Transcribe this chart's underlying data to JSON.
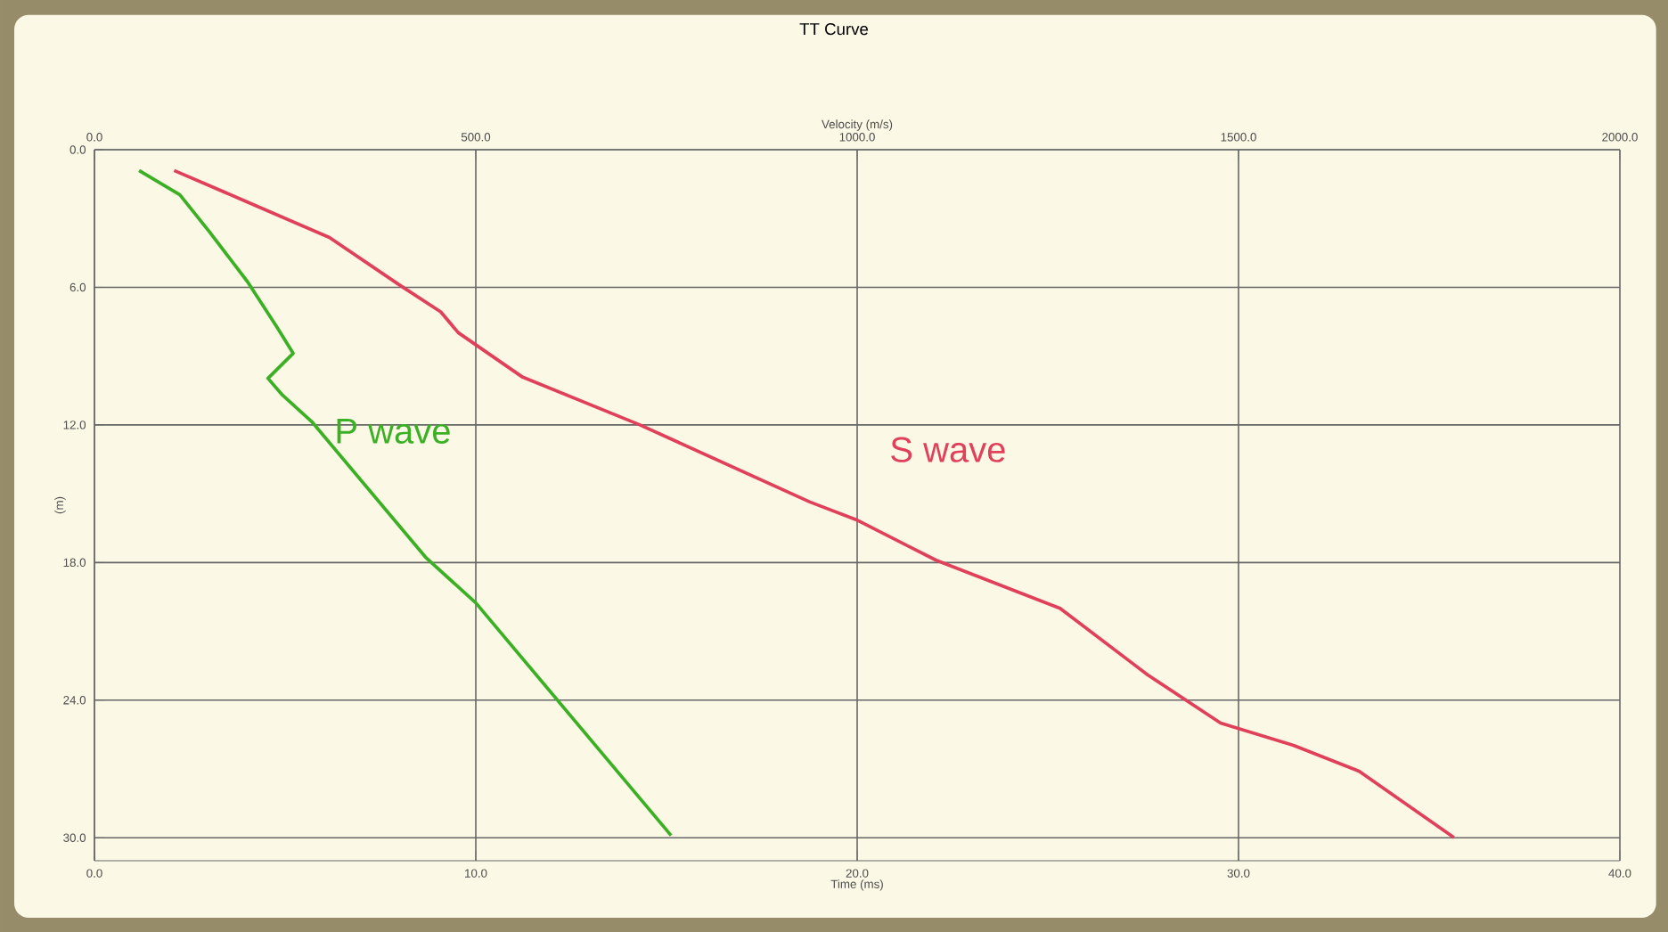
{
  "chart_data": {
    "type": "line",
    "title": "TT Curve",
    "xlabel": "Time (ms)",
    "x2label": "Velocity (m/s)",
    "ylabel": "(m)",
    "xlim": [
      0,
      40
    ],
    "xticks": [
      {
        "value": 0,
        "label": "0.0"
      },
      {
        "value": 10,
        "label": "10.0"
      },
      {
        "value": 20,
        "label": "20.0"
      },
      {
        "value": 30,
        "label": "30.0"
      },
      {
        "value": 40,
        "label": "40.0"
      }
    ],
    "x2lim": [
      0,
      2000
    ],
    "x2ticks": [
      {
        "value": 0,
        "label": "0.0"
      },
      {
        "value": 500,
        "label": "500.0"
      },
      {
        "value": 1000,
        "label": "1000.0"
      },
      {
        "value": 1500,
        "label": "1500.0"
      },
      {
        "value": 2000,
        "label": "2000.0"
      }
    ],
    "ylim": [
      31,
      0
    ],
    "yticks": [
      {
        "value": 0,
        "label": "0.0"
      },
      {
        "value": 6,
        "label": "6.0"
      },
      {
        "value": 12,
        "label": "12.0"
      },
      {
        "value": 18,
        "label": "18.0"
      },
      {
        "value": 24,
        "label": "24.0"
      },
      {
        "value": 30,
        "label": "30.0"
      }
    ],
    "grid": true,
    "marker": "none",
    "line_style": "solid",
    "series": [
      {
        "name": "P wave",
        "color": "#3cb024",
        "x": [
          1.17,
          2.24,
          3.01,
          4.01,
          4.78,
          5.21,
          4.55,
          4.93,
          5.7,
          8.7,
          10.0,
          15.12
        ],
        "values": [
          0.91,
          1.97,
          3.57,
          5.75,
          7.72,
          8.88,
          9.97,
          10.7,
          11.86,
          17.8,
          19.76,
          29.9
        ]
      },
      {
        "name": "S wave",
        "color": "#e0405a",
        "x": [
          2.09,
          4.01,
          6.16,
          8.0,
          9.08,
          9.54,
          11.23,
          14.29,
          18.76,
          19.97,
          22.07,
          25.32,
          27.62,
          29.53,
          31.44,
          33.16,
          35.65
        ],
        "values": [
          0.91,
          2.28,
          3.83,
          5.9,
          7.07,
          7.98,
          9.92,
          11.99,
          15.36,
          16.13,
          17.9,
          20.0,
          22.9,
          25.0,
          25.97,
          27.1,
          29.99
        ]
      }
    ]
  }
}
